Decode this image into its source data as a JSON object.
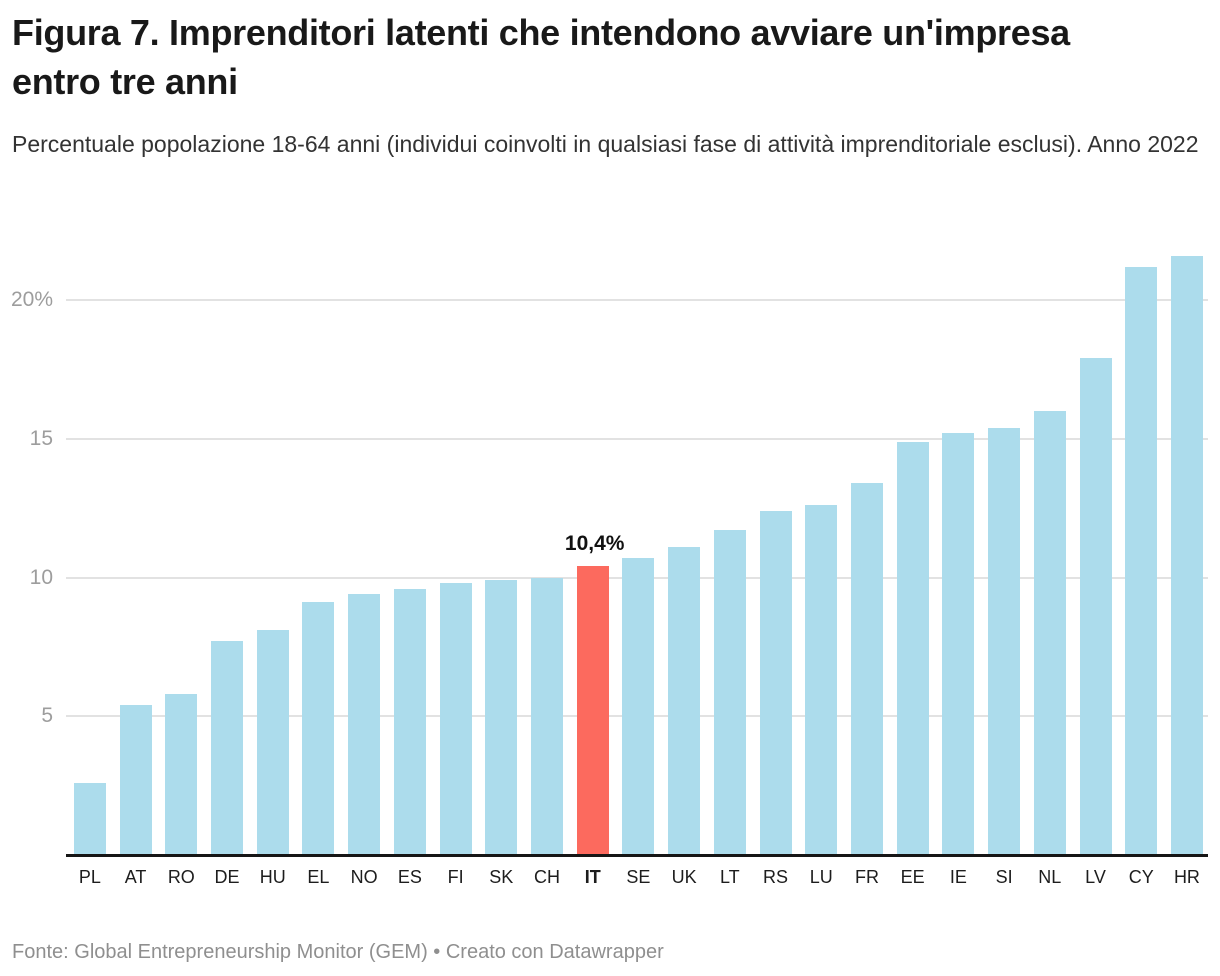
{
  "header": {
    "title": "Figura 7. Imprenditori latenti che intendono avviare un'impresa entro tre anni",
    "subtitle": "Percentuale popolazione 18-64 anni (individui coinvolti in qualsiasi fase di attività imprenditoriale esclusi). Anno 2022"
  },
  "footer": {
    "text": "Fonte: Global Entrepreneurship Monitor (GEM) • Creato con Datawrapper"
  },
  "colors": {
    "bar": "#acdcec",
    "highlight": "#fc6a5e",
    "gridline": "#e2e2e2",
    "axis_line": "#161616",
    "tick_label": "#9d9d9d",
    "category_label": "#1d1d1d",
    "footer_text": "#8f8f8f"
  },
  "chart_data": {
    "type": "bar",
    "title": "Figura 7. Imprenditori latenti che intendono avviare un'impresa entro tre anni",
    "subtitle": "Percentuale popolazione 18-64 anni (individui coinvolti in qualsiasi fase di attività imprenditoriale esclusi). Anno 2022",
    "source": "Fonte: Global Entrepreneurship Monitor (GEM) • Creato con Datawrapper",
    "categories": [
      "PL",
      "AT",
      "RO",
      "DE",
      "HU",
      "EL",
      "NO",
      "ES",
      "FI",
      "SK",
      "CH",
      "IT",
      "SE",
      "UK",
      "LT",
      "RS",
      "LU",
      "FR",
      "EE",
      "IE",
      "SI",
      "NL",
      "LV",
      "CY",
      "HR"
    ],
    "values": [
      2.6,
      5.4,
      5.8,
      7.7,
      8.1,
      9.1,
      9.4,
      9.6,
      9.8,
      9.9,
      10.0,
      10.4,
      10.7,
      11.1,
      11.7,
      12.4,
      12.6,
      13.4,
      14.9,
      15.2,
      15.4,
      16.0,
      17.9,
      21.2,
      21.6
    ],
    "highlight": {
      "category": "IT",
      "value_label": "10,4%"
    },
    "xlabel": "",
    "ylabel": "",
    "ylim": [
      0,
      22.2
    ],
    "yticks": [
      5,
      10,
      15,
      20
    ],
    "ytick_labels": [
      "5",
      "10",
      "15",
      "20%"
    ],
    "grid": true,
    "legend": false
  }
}
